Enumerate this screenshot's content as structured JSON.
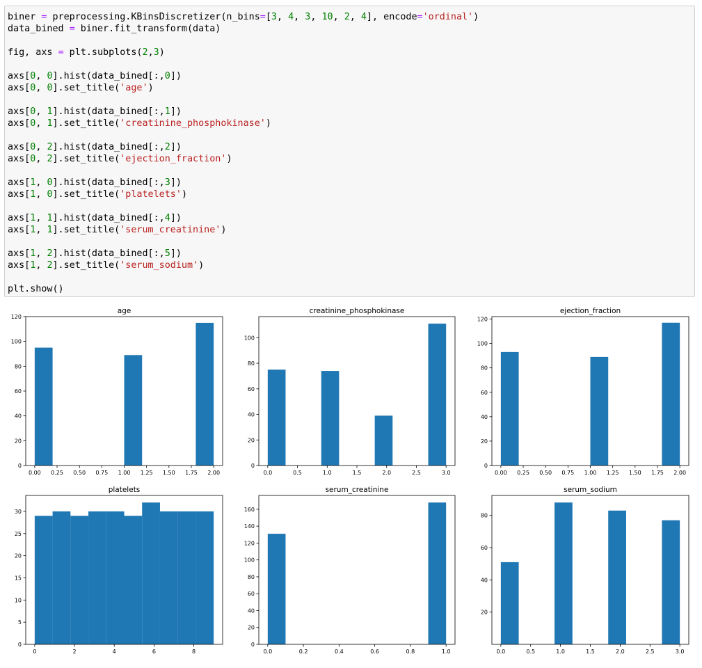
{
  "code_cell": {
    "lines": [
      [
        [
          "biner ",
          "txt"
        ],
        [
          "=",
          "op"
        ],
        [
          " preprocessing.KBinsDiscretizer(n_bins",
          "txt"
        ],
        [
          "=",
          "op"
        ],
        [
          "[",
          "txt"
        ],
        [
          "3",
          "num"
        ],
        [
          ", ",
          "txt"
        ],
        [
          "4",
          "num"
        ],
        [
          ", ",
          "txt"
        ],
        [
          "3",
          "num"
        ],
        [
          ", ",
          "txt"
        ],
        [
          "10",
          "num"
        ],
        [
          ", ",
          "txt"
        ],
        [
          "2",
          "num"
        ],
        [
          ", ",
          "txt"
        ],
        [
          "4",
          "num"
        ],
        [
          "], encode",
          "txt"
        ],
        [
          "=",
          "op"
        ],
        [
          "'ordinal'",
          "str"
        ],
        [
          ")",
          "txt"
        ]
      ],
      [
        [
          "data_bined ",
          "txt"
        ],
        [
          "=",
          "op"
        ],
        [
          " biner.fit_transform(data)",
          "txt"
        ]
      ],
      [],
      [
        [
          "fig, axs ",
          "txt"
        ],
        [
          "=",
          "op"
        ],
        [
          " plt.subplots(",
          "txt"
        ],
        [
          "2",
          "num"
        ],
        [
          ",",
          "txt"
        ],
        [
          "3",
          "num"
        ],
        [
          ")",
          "txt"
        ]
      ],
      [],
      [
        [
          "axs[",
          "txt"
        ],
        [
          "0",
          "num"
        ],
        [
          ", ",
          "txt"
        ],
        [
          "0",
          "num"
        ],
        [
          "].hist(data_bined[:,",
          "txt"
        ],
        [
          "0",
          "num"
        ],
        [
          "])",
          "txt"
        ]
      ],
      [
        [
          "axs[",
          "txt"
        ],
        [
          "0",
          "num"
        ],
        [
          ", ",
          "txt"
        ],
        [
          "0",
          "num"
        ],
        [
          "].set_title(",
          "txt"
        ],
        [
          "'age'",
          "str"
        ],
        [
          ")",
          "txt"
        ]
      ],
      [],
      [
        [
          "axs[",
          "txt"
        ],
        [
          "0",
          "num"
        ],
        [
          ", ",
          "txt"
        ],
        [
          "1",
          "num"
        ],
        [
          "].hist(data_bined[:,",
          "txt"
        ],
        [
          "1",
          "num"
        ],
        [
          "])",
          "txt"
        ]
      ],
      [
        [
          "axs[",
          "txt"
        ],
        [
          "0",
          "num"
        ],
        [
          ", ",
          "txt"
        ],
        [
          "1",
          "num"
        ],
        [
          "].set_title(",
          "txt"
        ],
        [
          "'creatinine_phosphokinase'",
          "str"
        ],
        [
          ")",
          "txt"
        ]
      ],
      [],
      [
        [
          "axs[",
          "txt"
        ],
        [
          "0",
          "num"
        ],
        [
          ", ",
          "txt"
        ],
        [
          "2",
          "num"
        ],
        [
          "].hist(data_bined[:,",
          "txt"
        ],
        [
          "2",
          "num"
        ],
        [
          "])",
          "txt"
        ]
      ],
      [
        [
          "axs[",
          "txt"
        ],
        [
          "0",
          "num"
        ],
        [
          ", ",
          "txt"
        ],
        [
          "2",
          "num"
        ],
        [
          "].set_title(",
          "txt"
        ],
        [
          "'ejection_fraction'",
          "str"
        ],
        [
          ")",
          "txt"
        ]
      ],
      [],
      [
        [
          "axs[",
          "txt"
        ],
        [
          "1",
          "num"
        ],
        [
          ", ",
          "txt"
        ],
        [
          "0",
          "num"
        ],
        [
          "].hist(data_bined[:,",
          "txt"
        ],
        [
          "3",
          "num"
        ],
        [
          "])",
          "txt"
        ]
      ],
      [
        [
          "axs[",
          "txt"
        ],
        [
          "1",
          "num"
        ],
        [
          ", ",
          "txt"
        ],
        [
          "0",
          "num"
        ],
        [
          "].set_title(",
          "txt"
        ],
        [
          "'platelets'",
          "str"
        ],
        [
          ")",
          "txt"
        ]
      ],
      [],
      [
        [
          "axs[",
          "txt"
        ],
        [
          "1",
          "num"
        ],
        [
          ", ",
          "txt"
        ],
        [
          "1",
          "num"
        ],
        [
          "].hist(data_bined[:,",
          "txt"
        ],
        [
          "4",
          "num"
        ],
        [
          "])",
          "txt"
        ]
      ],
      [
        [
          "axs[",
          "txt"
        ],
        [
          "1",
          "num"
        ],
        [
          ", ",
          "txt"
        ],
        [
          "1",
          "num"
        ],
        [
          "].set_title(",
          "txt"
        ],
        [
          "'serum_creatinine'",
          "str"
        ],
        [
          ")",
          "txt"
        ]
      ],
      [],
      [
        [
          "axs[",
          "txt"
        ],
        [
          "1",
          "num"
        ],
        [
          ", ",
          "txt"
        ],
        [
          "2",
          "num"
        ],
        [
          "].hist(data_bined[:,",
          "txt"
        ],
        [
          "5",
          "num"
        ],
        [
          "])",
          "txt"
        ]
      ],
      [
        [
          "axs[",
          "txt"
        ],
        [
          "1",
          "num"
        ],
        [
          ", ",
          "txt"
        ],
        [
          "2",
          "num"
        ],
        [
          "].set_title(",
          "txt"
        ],
        [
          "'serum_sodium'",
          "str"
        ],
        [
          ")",
          "txt"
        ]
      ],
      [],
      [
        [
          "plt.show()",
          "txt"
        ]
      ]
    ]
  },
  "colors": {
    "bar": "#1f77b4",
    "code_bg": "#f7f7f7",
    "string": "#ba2121",
    "number": "#008000",
    "operator": "#aa22ff"
  },
  "chart_data": [
    {
      "type": "bar",
      "title": "age",
      "grid": false,
      "xlim": [
        -0.1,
        2.1
      ],
      "ylim": [
        0,
        120
      ],
      "xticks": [
        0,
        0.25,
        0.5,
        0.75,
        1.0,
        1.25,
        1.5,
        1.75,
        2.0
      ],
      "xtick_labels": [
        "0.00",
        "0.25",
        "0.50",
        "0.75",
        "1.00",
        "1.25",
        "1.50",
        "1.75",
        "2.00"
      ],
      "yticks": [
        0,
        20,
        40,
        60,
        80,
        100,
        120
      ],
      "bins": [
        [
          0.0,
          0.2,
          95
        ],
        [
          0.2,
          0.4,
          0
        ],
        [
          0.4,
          0.6,
          0
        ],
        [
          0.6,
          0.8,
          0
        ],
        [
          0.8,
          1.0,
          0
        ],
        [
          1.0,
          1.2,
          89
        ],
        [
          1.2,
          1.4,
          0
        ],
        [
          1.4,
          1.6,
          0
        ],
        [
          1.6,
          1.8,
          0
        ],
        [
          1.8,
          2.0,
          115
        ]
      ]
    },
    {
      "type": "bar",
      "title": "creatinine_phosphokinase",
      "grid": false,
      "xlim": [
        -0.15,
        3.15
      ],
      "ylim": [
        0,
        116.5
      ],
      "xticks": [
        0,
        0.5,
        1.0,
        1.5,
        2.0,
        2.5,
        3.0
      ],
      "xtick_labels": [
        "0.0",
        "0.5",
        "1.0",
        "1.5",
        "2.0",
        "2.5",
        "3.0"
      ],
      "yticks": [
        0,
        20,
        40,
        60,
        80,
        100
      ],
      "bins": [
        [
          0.0,
          0.3,
          75
        ],
        [
          0.3,
          0.6,
          0
        ],
        [
          0.6,
          0.9,
          0
        ],
        [
          0.9,
          1.2,
          74
        ],
        [
          1.2,
          1.5,
          0
        ],
        [
          1.5,
          1.8,
          0
        ],
        [
          1.8,
          2.1,
          39
        ],
        [
          2.1,
          2.4,
          0
        ],
        [
          2.4,
          2.7,
          0
        ],
        [
          2.7,
          3.0,
          111
        ]
      ]
    },
    {
      "type": "bar",
      "title": "ejection_fraction",
      "grid": false,
      "xlim": [
        -0.1,
        2.1
      ],
      "ylim": [
        0,
        122
      ],
      "xticks": [
        0,
        0.25,
        0.5,
        0.75,
        1.0,
        1.25,
        1.5,
        1.75,
        2.0
      ],
      "xtick_labels": [
        "0.00",
        "0.25",
        "0.50",
        "0.75",
        "1.00",
        "1.25",
        "1.50",
        "1.75",
        "2.00"
      ],
      "yticks": [
        0,
        20,
        40,
        60,
        80,
        100,
        120
      ],
      "bins": [
        [
          0.0,
          0.2,
          93
        ],
        [
          0.2,
          0.4,
          0
        ],
        [
          0.4,
          0.6,
          0
        ],
        [
          0.6,
          0.8,
          0
        ],
        [
          0.8,
          1.0,
          0
        ],
        [
          1.0,
          1.2,
          89
        ],
        [
          1.2,
          1.4,
          0
        ],
        [
          1.4,
          1.6,
          0
        ],
        [
          1.6,
          1.8,
          0
        ],
        [
          1.8,
          2.0,
          117
        ]
      ]
    },
    {
      "type": "bar",
      "title": "platelets",
      "grid": false,
      "xlim": [
        -0.45,
        9.45
      ],
      "ylim": [
        0,
        33.6
      ],
      "xticks": [
        0,
        2,
        4,
        6,
        8
      ],
      "xtick_labels": [
        "0",
        "2",
        "4",
        "6",
        "8"
      ],
      "yticks": [
        0,
        5,
        10,
        15,
        20,
        25,
        30
      ],
      "bins": [
        [
          0.0,
          0.9,
          29
        ],
        [
          0.9,
          1.8,
          30
        ],
        [
          1.8,
          2.7,
          29
        ],
        [
          2.7,
          3.6,
          30
        ],
        [
          3.6,
          4.5,
          30
        ],
        [
          4.5,
          5.4,
          29
        ],
        [
          5.4,
          6.3,
          32
        ],
        [
          6.3,
          7.2,
          30
        ],
        [
          7.2,
          8.1,
          30
        ],
        [
          8.1,
          9.0,
          30
        ]
      ]
    },
    {
      "type": "bar",
      "title": "serum_creatinine",
      "grid": false,
      "xlim": [
        -0.05,
        1.05
      ],
      "ylim": [
        0,
        176.4
      ],
      "xticks": [
        0,
        0.2,
        0.4,
        0.6,
        0.8,
        1.0
      ],
      "xtick_labels": [
        "0.0",
        "0.2",
        "0.4",
        "0.6",
        "0.8",
        "1.0"
      ],
      "yticks": [
        0,
        20,
        40,
        60,
        80,
        100,
        120,
        140,
        160
      ],
      "bins": [
        [
          0.0,
          0.1,
          131
        ],
        [
          0.1,
          0.2,
          0
        ],
        [
          0.2,
          0.3,
          0
        ],
        [
          0.3,
          0.4,
          0
        ],
        [
          0.4,
          0.5,
          0
        ],
        [
          0.5,
          0.6,
          0
        ],
        [
          0.6,
          0.7,
          0
        ],
        [
          0.7,
          0.8,
          0
        ],
        [
          0.8,
          0.9,
          0
        ],
        [
          0.9,
          1.0,
          168
        ]
      ]
    },
    {
      "type": "bar",
      "title": "serum_sodium",
      "grid": false,
      "xlim": [
        -0.15,
        3.15
      ],
      "ylim": [
        0,
        92.4
      ],
      "xticks": [
        0,
        0.5,
        1.0,
        1.5,
        2.0,
        2.5,
        3.0
      ],
      "xtick_labels": [
        "0.0",
        "0.5",
        "1.0",
        "1.5",
        "2.0",
        "2.5",
        "3.0"
      ],
      "yticks": [
        20,
        40,
        60,
        80
      ],
      "bins": [
        [
          0.0,
          0.3,
          51
        ],
        [
          0.3,
          0.6,
          0
        ],
        [
          0.6,
          0.9,
          0
        ],
        [
          0.9,
          1.2,
          88
        ],
        [
          1.2,
          1.5,
          0
        ],
        [
          1.5,
          1.8,
          0
        ],
        [
          1.8,
          2.1,
          83
        ],
        [
          2.1,
          2.4,
          0
        ],
        [
          2.4,
          2.7,
          0
        ],
        [
          2.7,
          3.0,
          77
        ]
      ]
    }
  ]
}
